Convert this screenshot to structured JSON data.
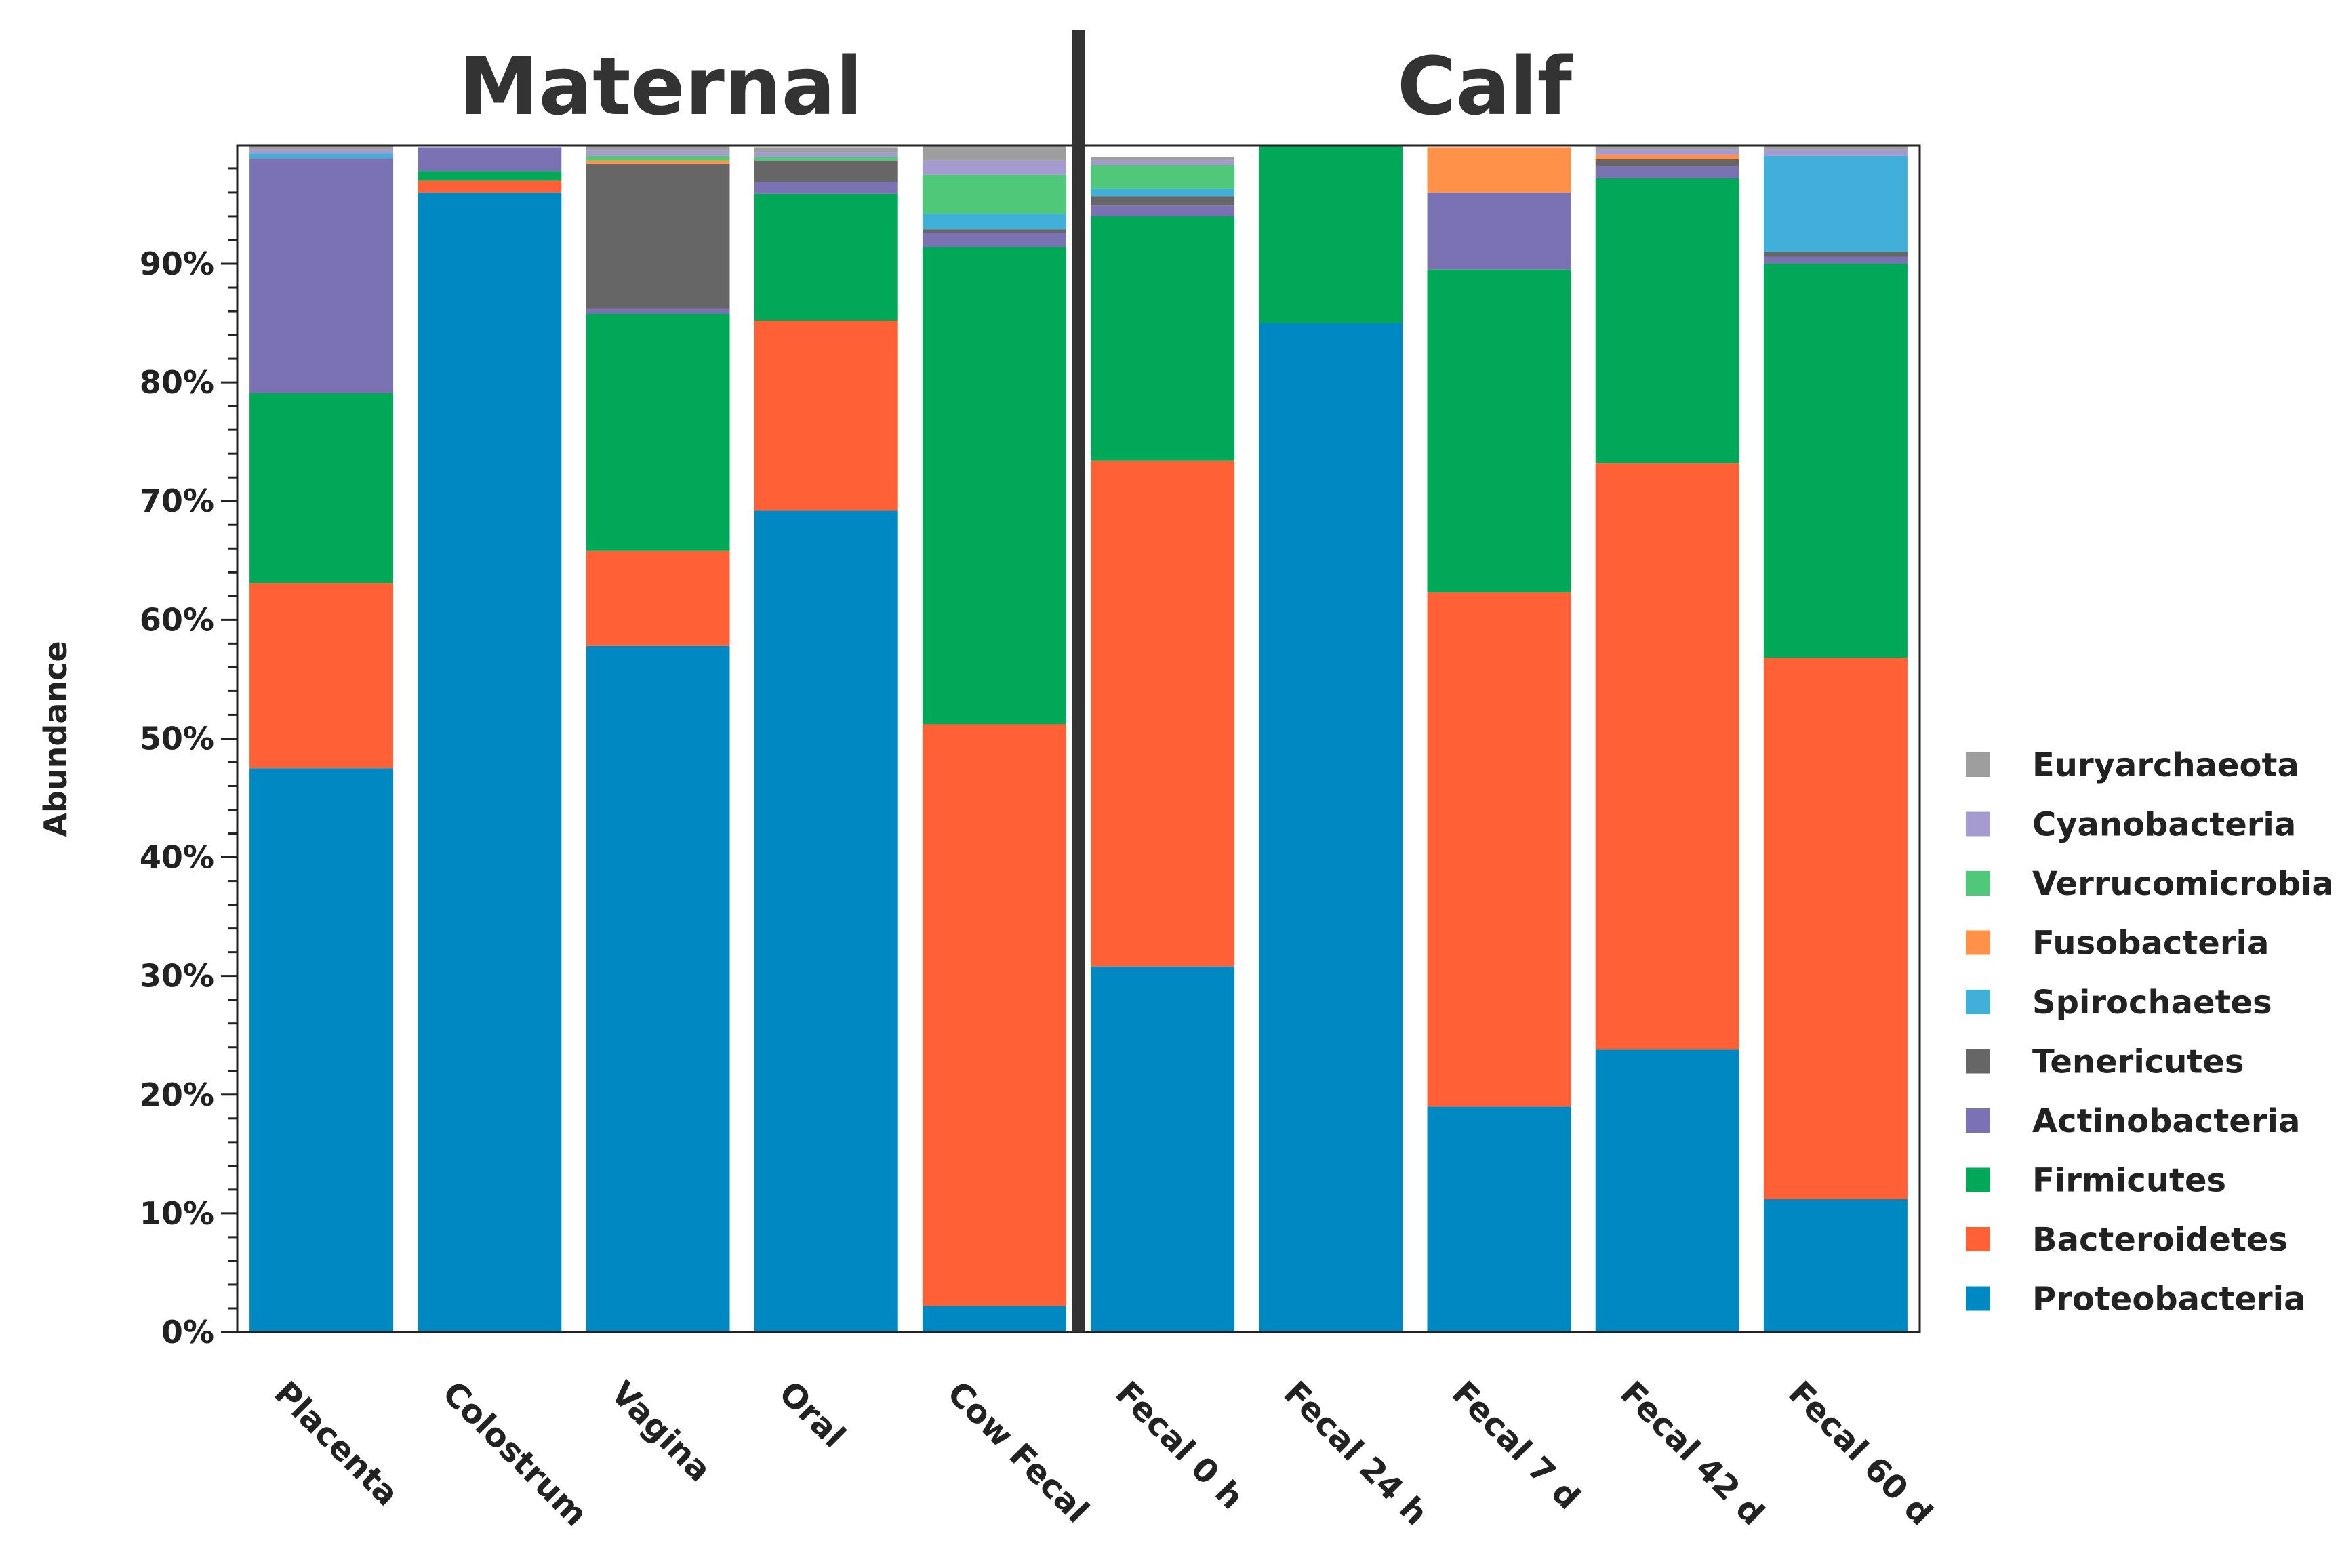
{
  "chart_data": {
    "type": "bar",
    "stacked": true,
    "title": "",
    "xlabel": "",
    "ylabel": "Abundance",
    "ylim": [
      0,
      100
    ],
    "ytick_labels": [
      "0%",
      "10%",
      "20%",
      "30%",
      "40%",
      "50%",
      "60%",
      "70%",
      "80%",
      "90%"
    ],
    "ytick_values": [
      0,
      10,
      20,
      30,
      40,
      50,
      60,
      70,
      80,
      90
    ],
    "grid": false,
    "legend_position": "right",
    "groups": [
      {
        "label": "Maternal",
        "categories": [
          "Placenta",
          "Colostrum",
          "Vagina",
          "Oral",
          "Cow Fecal"
        ]
      },
      {
        "label": "Calf",
        "categories": [
          "Fecal 0 h",
          "Fecal 24 h",
          "Fecal 7 d",
          "Fecal 42 d",
          "Fecal 60 d"
        ]
      }
    ],
    "categories": [
      "Placenta",
      "Colostrum",
      "Vagina",
      "Oral",
      "Cow Fecal",
      "Fecal 0 h",
      "Fecal 24 h",
      "Fecal 7 d",
      "Fecal 42 d",
      "Fecal 60 d"
    ],
    "series": [
      {
        "name": "Proteobacteria",
        "color": "#0088c2",
        "values": [
          47.5,
          96.0,
          57.8,
          69.2,
          2.2,
          30.8,
          85.0,
          19.0,
          23.8,
          11.2
        ]
      },
      {
        "name": "Bacteroidetes",
        "color": "#ff6035",
        "values": [
          15.6,
          1.0,
          8.0,
          16.0,
          49.0,
          42.6,
          0.0,
          43.3,
          49.4,
          45.6
        ]
      },
      {
        "name": "Firmicutes",
        "color": "#00a858",
        "values": [
          16.0,
          0.8,
          20.0,
          10.7,
          40.2,
          20.6,
          15.0,
          27.2,
          24.0,
          33.2
        ]
      },
      {
        "name": "Actinobacteria",
        "color": "#7b72b4",
        "values": [
          19.8,
          2.0,
          0.4,
          1.0,
          1.2,
          0.9,
          0.0,
          6.5,
          1.0,
          0.6
        ]
      },
      {
        "name": "Tenericutes",
        "color": "#666666",
        "values": [
          0.0,
          0.0,
          12.2,
          1.8,
          0.3,
          0.8,
          0.0,
          0.0,
          0.6,
          0.4
        ]
      },
      {
        "name": "Spirochaetes",
        "color": "#40afd9",
        "values": [
          0.4,
          0.0,
          0.0,
          0.0,
          1.3,
          0.6,
          0.0,
          0.0,
          0.0,
          8.1
        ]
      },
      {
        "name": "Fusobacteria",
        "color": "#ff9149",
        "values": [
          0.0,
          0.0,
          0.3,
          0.0,
          0.0,
          0.0,
          0.0,
          3.8,
          0.4,
          0.0
        ]
      },
      {
        "name": "Verrucomicrobia",
        "color": "#4fc879",
        "values": [
          0.0,
          0.0,
          0.4,
          0.3,
          3.3,
          2.0,
          0.0,
          0.0,
          0.0,
          0.0
        ]
      },
      {
        "name": "Cyanobacteria",
        "color": "#a59bd0",
        "values": [
          0.3,
          0.0,
          0.4,
          0.4,
          1.2,
          0.4,
          0.0,
          0.0,
          0.4,
          0.5
        ]
      },
      {
        "name": "Euryarchaeota",
        "color": "#9e9e9e",
        "values": [
          0.4,
          0.0,
          0.5,
          0.4,
          1.3,
          0.3,
          0.0,
          0.0,
          0.4,
          0.4
        ]
      }
    ]
  }
}
